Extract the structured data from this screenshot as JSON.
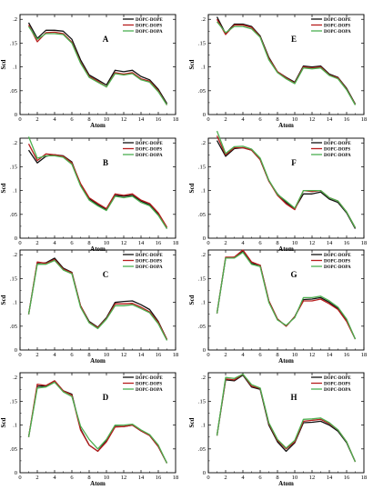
{
  "figure": {
    "background": "#ffffff",
    "series_colors": {
      "DOPC-DOPE": "#111111",
      "DOPC-DOPS": "#b71c1c",
      "DOPC-DOPA": "#4caf50"
    }
  },
  "chart_data": [
    {
      "type": "line",
      "panel": "A",
      "xlabel": "Atom",
      "ylabel": "Scd",
      "xlim": [
        0,
        18
      ],
      "ylim": [
        0,
        0.2
      ],
      "xticks": [
        0,
        2,
        4,
        6,
        8,
        10,
        12,
        14,
        16,
        18
      ],
      "yticks": [
        0.05,
        0.1,
        0.15,
        0.2
      ],
      "legend_position": "top-right",
      "x": [
        1,
        2,
        3,
        4,
        5,
        6,
        7,
        8,
        9,
        10,
        11,
        12,
        13,
        14,
        15,
        16,
        17
      ],
      "series": [
        {
          "name": "DOPC-DOPE",
          "color": "#111111",
          "values": [
            0.193,
            0.16,
            0.177,
            0.177,
            0.175,
            0.158,
            0.115,
            0.083,
            0.073,
            0.062,
            0.093,
            0.09,
            0.093,
            0.08,
            0.073,
            0.053,
            0.023
          ]
        },
        {
          "name": "DOPC-DOPS",
          "color": "#b71c1c",
          "values": [
            0.188,
            0.153,
            0.172,
            0.173,
            0.17,
            0.152,
            0.11,
            0.08,
            0.07,
            0.058,
            0.088,
            0.085,
            0.088,
            0.075,
            0.07,
            0.05,
            0.02
          ]
        },
        {
          "name": "DOPC-DOPA",
          "color": "#4caf50",
          "values": [
            0.185,
            0.158,
            0.17,
            0.17,
            0.168,
            0.15,
            0.108,
            0.078,
            0.068,
            0.058,
            0.086,
            0.083,
            0.086,
            0.073,
            0.068,
            0.048,
            0.02
          ]
        }
      ]
    },
    {
      "type": "line",
      "panel": "B",
      "xlabel": "Atom",
      "ylabel": "Scd",
      "xlim": [
        0,
        18
      ],
      "ylim": [
        0,
        0.2
      ],
      "xticks": [
        0,
        2,
        4,
        6,
        8,
        10,
        12,
        14,
        16,
        18
      ],
      "yticks": [
        0.05,
        0.1,
        0.15,
        0.2
      ],
      "legend_position": "top-right",
      "x": [
        1,
        2,
        3,
        4,
        5,
        6,
        7,
        8,
        9,
        10,
        11,
        12,
        13,
        14,
        15,
        16,
        17
      ],
      "series": [
        {
          "name": "DOPC-DOPE",
          "color": "#111111",
          "values": [
            0.185,
            0.158,
            0.172,
            0.175,
            0.173,
            0.16,
            0.112,
            0.083,
            0.07,
            0.06,
            0.09,
            0.088,
            0.09,
            0.078,
            0.07,
            0.05,
            0.02
          ]
        },
        {
          "name": "DOPC-DOPS",
          "color": "#b71c1c",
          "values": [
            0.198,
            0.163,
            0.177,
            0.175,
            0.172,
            0.158,
            0.115,
            0.085,
            0.073,
            0.062,
            0.093,
            0.09,
            0.093,
            0.08,
            0.073,
            0.053,
            0.023
          ]
        },
        {
          "name": "DOPC-DOPA",
          "color": "#4caf50",
          "values": [
            0.213,
            0.168,
            0.173,
            0.173,
            0.17,
            0.155,
            0.11,
            0.08,
            0.068,
            0.058,
            0.088,
            0.085,
            0.088,
            0.075,
            0.068,
            0.048,
            0.02
          ]
        }
      ]
    },
    {
      "type": "line",
      "panel": "C",
      "xlabel": "Atom",
      "ylabel": "Scd",
      "xlim": [
        0,
        18
      ],
      "ylim": [
        0,
        0.2
      ],
      "xticks": [
        0,
        2,
        4,
        6,
        8,
        10,
        12,
        14,
        16,
        18
      ],
      "yticks": [
        0.05,
        0.1,
        0.15,
        0.2
      ],
      "legend_position": "top-right",
      "x": [
        1,
        2,
        3,
        4,
        5,
        6,
        7,
        8,
        9,
        10,
        11,
        12,
        13,
        14,
        15,
        16,
        17
      ],
      "series": [
        {
          "name": "DOPC-DOPE",
          "color": "#111111",
          "values": [
            0.075,
            0.183,
            0.183,
            0.193,
            0.172,
            0.163,
            0.093,
            0.06,
            0.048,
            0.068,
            0.1,
            0.102,
            0.103,
            0.095,
            0.085,
            0.06,
            0.022
          ]
        },
        {
          "name": "DOPC-DOPS",
          "color": "#b71c1c",
          "values": [
            0.075,
            0.185,
            0.182,
            0.19,
            0.17,
            0.162,
            0.093,
            0.058,
            0.047,
            0.066,
            0.097,
            0.097,
            0.098,
            0.09,
            0.08,
            0.058,
            0.022
          ]
        },
        {
          "name": "DOPC-DOPA",
          "color": "#4caf50",
          "values": [
            0.075,
            0.18,
            0.18,
            0.188,
            0.168,
            0.16,
            0.09,
            0.057,
            0.045,
            0.065,
            0.093,
            0.093,
            0.095,
            0.087,
            0.078,
            0.055,
            0.02
          ]
        }
      ]
    },
    {
      "type": "line",
      "panel": "D",
      "xlabel": "Atom",
      "ylabel": "Scd",
      "xlim": [
        0,
        18
      ],
      "ylim": [
        0,
        0.2
      ],
      "xticks": [
        0,
        2,
        4,
        6,
        8,
        10,
        12,
        14,
        16,
        18
      ],
      "yticks": [
        0.05,
        0.1,
        0.15,
        0.2
      ],
      "legend_position": "top-right",
      "x": [
        1,
        2,
        3,
        4,
        5,
        6,
        7,
        8,
        9,
        10,
        11,
        12,
        13,
        14,
        15,
        16,
        17
      ],
      "series": [
        {
          "name": "DOPC-DOPE",
          "color": "#111111",
          "values": [
            0.075,
            0.182,
            0.182,
            0.193,
            0.172,
            0.165,
            0.092,
            0.058,
            0.045,
            0.068,
            0.097,
            0.097,
            0.1,
            0.088,
            0.078,
            0.055,
            0.02
          ]
        },
        {
          "name": "DOPC-DOPS",
          "color": "#b71c1c",
          "values": [
            0.075,
            0.186,
            0.183,
            0.193,
            0.172,
            0.163,
            0.09,
            0.058,
            0.045,
            0.065,
            0.096,
            0.097,
            0.1,
            0.088,
            0.078,
            0.055,
            0.02
          ]
        },
        {
          "name": "DOPC-DOPA",
          "color": "#4caf50",
          "values": [
            0.075,
            0.178,
            0.18,
            0.19,
            0.17,
            0.16,
            0.098,
            0.07,
            0.05,
            0.07,
            0.1,
            0.1,
            0.102,
            0.09,
            0.08,
            0.058,
            0.02
          ]
        }
      ]
    },
    {
      "type": "line",
      "panel": "E",
      "xlabel": "Atom",
      "ylabel": "Scd",
      "xlim": [
        0,
        18
      ],
      "ylim": [
        0,
        0.2
      ],
      "xticks": [
        0,
        2,
        4,
        6,
        8,
        10,
        12,
        14,
        16,
        18
      ],
      "yticks": [
        0.05,
        0.1,
        0.15,
        0.2
      ],
      "legend_position": "top-right",
      "x": [
        1,
        2,
        3,
        4,
        5,
        6,
        7,
        8,
        9,
        10,
        11,
        12,
        13,
        14,
        15,
        16,
        17
      ],
      "series": [
        {
          "name": "DOPC-DOPE",
          "color": "#111111",
          "values": [
            0.205,
            0.17,
            0.19,
            0.19,
            0.185,
            0.165,
            0.12,
            0.09,
            0.078,
            0.068,
            0.102,
            0.1,
            0.102,
            0.085,
            0.078,
            0.055,
            0.022
          ]
        },
        {
          "name": "DOPC-DOPS",
          "color": "#b71c1c",
          "values": [
            0.2,
            0.168,
            0.188,
            0.188,
            0.183,
            0.163,
            0.118,
            0.09,
            0.077,
            0.066,
            0.1,
            0.098,
            0.1,
            0.083,
            0.077,
            0.053,
            0.021
          ]
        },
        {
          "name": "DOPC-DOPA",
          "color": "#4caf50",
          "values": [
            0.195,
            0.172,
            0.185,
            0.185,
            0.18,
            0.162,
            0.115,
            0.088,
            0.075,
            0.065,
            0.098,
            0.096,
            0.098,
            0.082,
            0.075,
            0.052,
            0.02
          ]
        }
      ]
    },
    {
      "type": "line",
      "panel": "F",
      "xlabel": "Atom",
      "ylabel": "Scd",
      "xlim": [
        0,
        18
      ],
      "ylim": [
        0,
        0.2
      ],
      "xticks": [
        0,
        2,
        4,
        6,
        8,
        10,
        12,
        14,
        16,
        18
      ],
      "yticks": [
        0.05,
        0.1,
        0.15,
        0.2
      ],
      "legend_position": "top-right",
      "x": [
        1,
        2,
        3,
        4,
        5,
        6,
        7,
        8,
        9,
        10,
        11,
        12,
        13,
        14,
        15,
        16,
        17
      ],
      "series": [
        {
          "name": "DOPC-DOPE",
          "color": "#111111",
          "values": [
            0.205,
            0.172,
            0.188,
            0.19,
            0.185,
            0.165,
            0.12,
            0.093,
            0.075,
            0.062,
            0.093,
            0.093,
            0.097,
            0.082,
            0.075,
            0.053,
            0.02
          ]
        },
        {
          "name": "DOPC-DOPS",
          "color": "#b71c1c",
          "values": [
            0.215,
            0.175,
            0.19,
            0.19,
            0.185,
            0.165,
            0.12,
            0.09,
            0.072,
            0.06,
            0.1,
            0.098,
            0.1,
            0.085,
            0.078,
            0.055,
            0.022
          ]
        },
        {
          "name": "DOPC-DOPA",
          "color": "#4caf50",
          "values": [
            0.225,
            0.178,
            0.192,
            0.193,
            0.187,
            0.168,
            0.122,
            0.092,
            0.078,
            0.063,
            0.1,
            0.1,
            0.1,
            0.085,
            0.078,
            0.055,
            0.022
          ]
        }
      ]
    },
    {
      "type": "line",
      "panel": "G",
      "xlabel": "Atom",
      "ylabel": "Scd",
      "xlim": [
        0,
        18
      ],
      "ylim": [
        0,
        0.2
      ],
      "xticks": [
        0,
        2,
        4,
        6,
        8,
        10,
        12,
        14,
        16,
        18
      ],
      "yticks": [
        0.05,
        0.1,
        0.15,
        0.2
      ],
      "legend_position": "top-right",
      "x": [
        1,
        2,
        3,
        4,
        5,
        6,
        7,
        8,
        9,
        10,
        11,
        12,
        13,
        14,
        15,
        16,
        17
      ],
      "series": [
        {
          "name": "DOPC-DOPE",
          "color": "#111111",
          "values": [
            0.077,
            0.193,
            0.195,
            0.207,
            0.182,
            0.178,
            0.103,
            0.065,
            0.05,
            0.07,
            0.106,
            0.107,
            0.11,
            0.1,
            0.087,
            0.063,
            0.023
          ]
        },
        {
          "name": "DOPC-DOPS",
          "color": "#b71c1c",
          "values": [
            0.077,
            0.195,
            0.195,
            0.21,
            0.185,
            0.178,
            0.103,
            0.065,
            0.05,
            0.07,
            0.103,
            0.103,
            0.107,
            0.097,
            0.085,
            0.06,
            0.023
          ]
        },
        {
          "name": "DOPC-DOPA",
          "color": "#4caf50",
          "values": [
            0.077,
            0.193,
            0.193,
            0.205,
            0.18,
            0.175,
            0.1,
            0.063,
            0.052,
            0.068,
            0.11,
            0.11,
            0.113,
            0.103,
            0.09,
            0.065,
            0.023
          ]
        }
      ]
    },
    {
      "type": "line",
      "panel": "H",
      "xlabel": "Atom",
      "ylabel": "Scd",
      "xlim": [
        0,
        18
      ],
      "ylim": [
        0,
        0.2
      ],
      "xticks": [
        0,
        2,
        4,
        6,
        8,
        10,
        12,
        14,
        16,
        18
      ],
      "yticks": [
        0.05,
        0.1,
        0.15,
        0.2
      ],
      "legend_position": "top-right",
      "x": [
        1,
        2,
        3,
        4,
        5,
        6,
        7,
        8,
        9,
        10,
        11,
        12,
        13,
        14,
        15,
        16,
        17
      ],
      "series": [
        {
          "name": "DOPC-DOPE",
          "color": "#111111",
          "values": [
            0.078,
            0.195,
            0.193,
            0.205,
            0.18,
            0.175,
            0.1,
            0.065,
            0.045,
            0.063,
            0.105,
            0.106,
            0.108,
            0.1,
            0.087,
            0.063,
            0.023
          ]
        },
        {
          "name": "DOPC-DOPS",
          "color": "#b71c1c",
          "values": [
            0.078,
            0.197,
            0.195,
            0.207,
            0.182,
            0.177,
            0.103,
            0.068,
            0.05,
            0.065,
            0.108,
            0.11,
            0.112,
            0.103,
            0.09,
            0.065,
            0.023
          ]
        },
        {
          "name": "DOPC-DOPA",
          "color": "#4caf50",
          "values": [
            0.078,
            0.2,
            0.198,
            0.207,
            0.185,
            0.178,
            0.105,
            0.07,
            0.052,
            0.068,
            0.112,
            0.113,
            0.115,
            0.105,
            0.09,
            0.065,
            0.023
          ]
        }
      ]
    }
  ]
}
